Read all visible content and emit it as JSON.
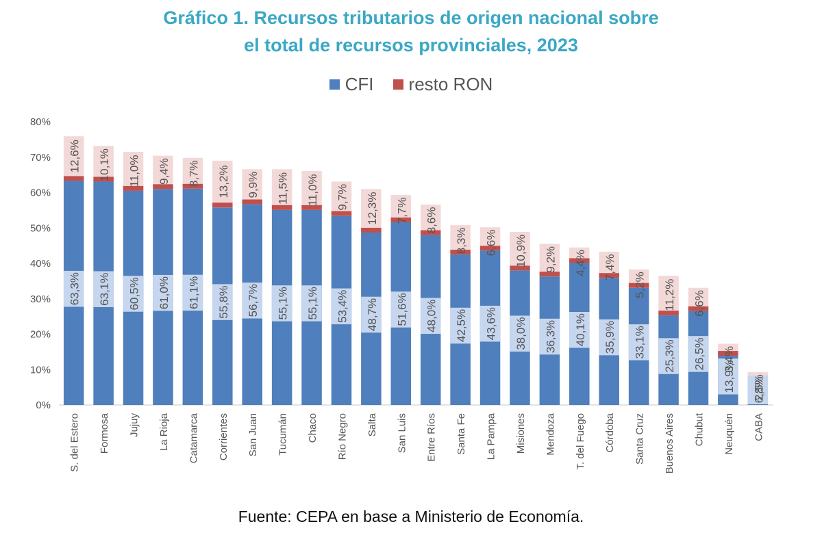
{
  "title_lines": [
    "Gráfico 1. Recursos tributarios de origen nacional sobre",
    "el total de recursos provinciales, 2023"
  ],
  "source": "Fuente: CEPA en base a Ministerio de Economía.",
  "colors": {
    "title": "#3aa8c4",
    "cfi": "#4f7fbc",
    "resto_ron": "#c0504d",
    "cfi_label_bg": "#c5d6ee",
    "resto_label_bg": "#f2d9d8",
    "axis": "#c8c8c8",
    "text": "#555555"
  },
  "chart_data": {
    "type": "bar",
    "stacked": true,
    "categories": [
      "S. del Estero",
      "Formosa",
      "Jujuy",
      "La Rioja",
      "Catamarca",
      "Corrientes",
      "San Juan",
      "Tucumán",
      "Chaco",
      "Río Negro",
      "Salta",
      "San Luis",
      "Entre Ríos",
      "Santa Fe",
      "La Pampa",
      "Misiones",
      "Mendoza",
      "T. del Fuego",
      "Córdoba",
      "Santa Cruz",
      "Buenos Aires",
      "Chubut",
      "Neuquén",
      "CABA"
    ],
    "series": [
      {
        "name": "CFI",
        "values": [
          63.3,
          63.1,
          60.5,
          61.0,
          61.1,
          55.8,
          56.7,
          55.1,
          55.1,
          53.4,
          48.7,
          51.6,
          48.0,
          42.5,
          43.6,
          38.0,
          36.3,
          40.1,
          35.9,
          33.1,
          25.3,
          26.5,
          13.9,
          6.8
        ],
        "labels": [
          "63,3%",
          "63,1%",
          "60,5%",
          "61,0%",
          "61,1%",
          "55,8%",
          "56,7%",
          "55,1%",
          "55,1%",
          "53,4%",
          "48,7%",
          "51,6%",
          "48,0%",
          "42,5%",
          "43,6%",
          "38,0%",
          "36,3%",
          "40,1%",
          "35,9%",
          "33,1%",
          "25,3%",
          "26,5%",
          "13,9%",
          "6,8%"
        ]
      },
      {
        "name": "resto RON",
        "values": [
          12.6,
          10.1,
          11.0,
          9.4,
          8.7,
          13.2,
          9.9,
          11.5,
          11.0,
          9.7,
          12.3,
          7.7,
          8.6,
          8.3,
          6.6,
          10.9,
          9.2,
          4.4,
          7.4,
          5.2,
          11.2,
          6.6,
          3.4,
          2.5
        ],
        "labels": [
          "12,6%",
          "10,1%",
          "11,0%",
          "9,4%",
          "8,7%",
          "13,2%",
          "9,9%",
          "11,5%",
          "11,0%",
          "9,7%",
          "12,3%",
          "7,7%",
          "8,6%",
          "8,3%",
          "6,6%",
          "10,9%",
          "9,2%",
          "4,4%",
          "7,4%",
          "5,2%",
          "11,2%",
          "6,6%",
          "3,4%",
          "2,5%"
        ]
      }
    ],
    "ylim": [
      0,
      80
    ],
    "yticks": [
      0,
      10,
      20,
      30,
      40,
      50,
      60,
      70,
      80
    ],
    "ytick_labels": [
      "0%",
      "10%",
      "20%",
      "30%",
      "40%",
      "50%",
      "60%",
      "70%",
      "80%"
    ],
    "legend_position": "top",
    "grid": false
  }
}
